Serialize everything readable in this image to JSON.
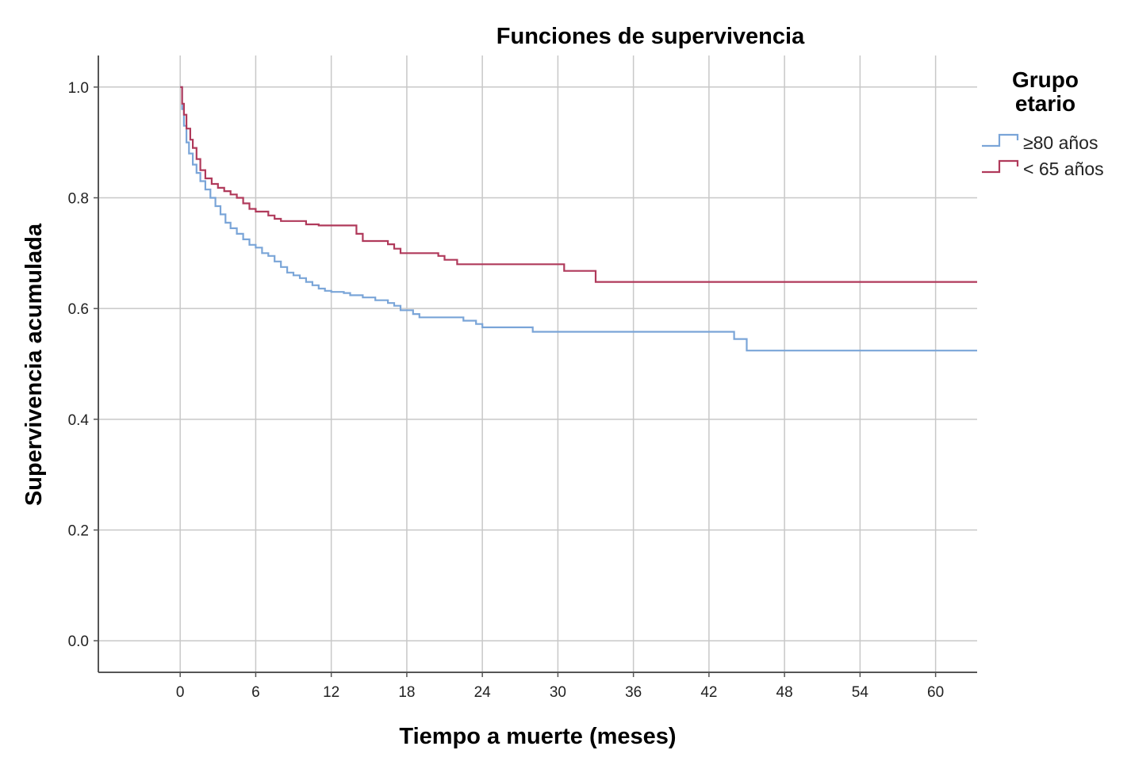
{
  "chart_data": {
    "type": "line",
    "subtype": "kaplan-meier-step",
    "title": "Funciones de supervivencia",
    "xlabel": "Tiempo a muerte (meses)",
    "ylabel": "Supervivencia acumulada",
    "xlim": [
      -6.5,
      63.3
    ],
    "ylim": [
      -0.057,
      1.057
    ],
    "x_ticks": [
      0,
      6,
      12,
      18,
      24,
      30,
      36,
      42,
      48,
      54,
      60
    ],
    "y_ticks": [
      0.0,
      0.2,
      0.4,
      0.6,
      0.8,
      1.0
    ],
    "y_tick_labels": [
      "0.0",
      "0.2",
      "0.4",
      "0.6",
      "0.8",
      "1.0"
    ],
    "grid": true,
    "legend": {
      "title": "Grupo etario",
      "title_lines": [
        "Grupo",
        "etario"
      ],
      "position": "right"
    },
    "series": [
      {
        "name": "≥80 años",
        "color": "#7aa5d8",
        "points": [
          [
            0,
            1.0
          ],
          [
            0.15,
            0.96
          ],
          [
            0.3,
            0.93
          ],
          [
            0.5,
            0.9
          ],
          [
            0.7,
            0.88
          ],
          [
            1.0,
            0.86
          ],
          [
            1.3,
            0.845
          ],
          [
            1.6,
            0.83
          ],
          [
            2.0,
            0.815
          ],
          [
            2.4,
            0.8
          ],
          [
            2.8,
            0.785
          ],
          [
            3.2,
            0.77
          ],
          [
            3.6,
            0.755
          ],
          [
            4.0,
            0.745
          ],
          [
            4.5,
            0.735
          ],
          [
            5.0,
            0.725
          ],
          [
            5.5,
            0.715
          ],
          [
            6.0,
            0.71
          ],
          [
            6.5,
            0.7
          ],
          [
            7.0,
            0.695
          ],
          [
            7.5,
            0.685
          ],
          [
            8.0,
            0.675
          ],
          [
            8.5,
            0.665
          ],
          [
            9.0,
            0.66
          ],
          [
            9.5,
            0.655
          ],
          [
            10.0,
            0.648
          ],
          [
            10.5,
            0.642
          ],
          [
            11.0,
            0.636
          ],
          [
            11.5,
            0.632
          ],
          [
            12.0,
            0.63
          ],
          [
            13.0,
            0.628
          ],
          [
            13.5,
            0.624
          ],
          [
            14.5,
            0.62
          ],
          [
            15.5,
            0.615
          ],
          [
            16.5,
            0.61
          ],
          [
            17.0,
            0.605
          ],
          [
            17.5,
            0.597
          ],
          [
            18.5,
            0.59
          ],
          [
            19.0,
            0.584
          ],
          [
            22.5,
            0.578
          ],
          [
            23.5,
            0.572
          ],
          [
            24.0,
            0.566
          ],
          [
            28.0,
            0.558
          ],
          [
            44.0,
            0.545
          ],
          [
            45.0,
            0.524
          ],
          [
            63.3,
            0.524
          ]
        ]
      },
      {
        "name": "< 65 años",
        "color": "#b03a5b",
        "points": [
          [
            0,
            1.0
          ],
          [
            0.15,
            0.97
          ],
          [
            0.3,
            0.95
          ],
          [
            0.5,
            0.925
          ],
          [
            0.8,
            0.905
          ],
          [
            1.0,
            0.89
          ],
          [
            1.3,
            0.87
          ],
          [
            1.6,
            0.85
          ],
          [
            2.0,
            0.835
          ],
          [
            2.5,
            0.825
          ],
          [
            3.0,
            0.818
          ],
          [
            3.5,
            0.812
          ],
          [
            4.0,
            0.806
          ],
          [
            4.5,
            0.8
          ],
          [
            5.0,
            0.79
          ],
          [
            5.5,
            0.78
          ],
          [
            6.0,
            0.775
          ],
          [
            7.0,
            0.768
          ],
          [
            7.5,
            0.762
          ],
          [
            8.0,
            0.758
          ],
          [
            10.0,
            0.752
          ],
          [
            11.0,
            0.75
          ],
          [
            14.0,
            0.735
          ],
          [
            14.5,
            0.722
          ],
          [
            16.5,
            0.716
          ],
          [
            17.0,
            0.708
          ],
          [
            17.5,
            0.7
          ],
          [
            20.5,
            0.695
          ],
          [
            21.0,
            0.688
          ],
          [
            22.0,
            0.68
          ],
          [
            30.5,
            0.668
          ],
          [
            33.0,
            0.648
          ],
          [
            63.3,
            0.648
          ]
        ]
      }
    ]
  }
}
